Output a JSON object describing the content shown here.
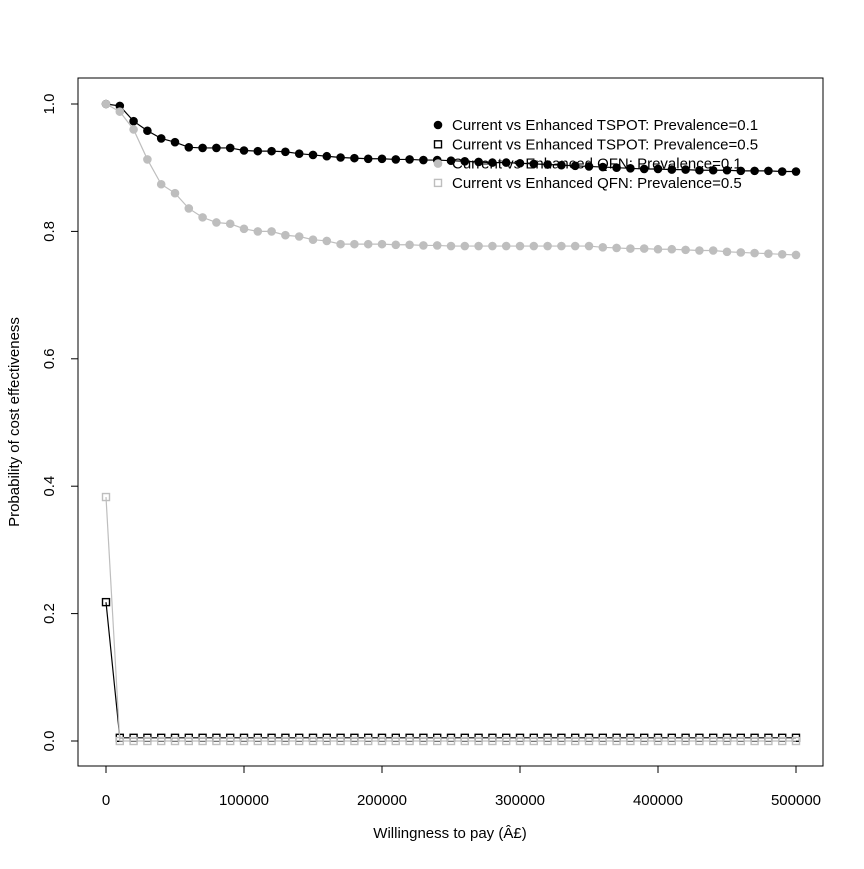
{
  "chart_data": {
    "type": "line",
    "xlabel": "Willingness to pay (Â£)",
    "ylabel": "Probability of cost effectiveness",
    "xlim": [
      0,
      500000
    ],
    "ylim": [
      0,
      1
    ],
    "x_ticks": [
      0,
      100000,
      200000,
      300000,
      400000,
      500000
    ],
    "x_tick_labels": [
      "0",
      "100000",
      "200000",
      "300000",
      "400000",
      "500000"
    ],
    "y_ticks": [
      0,
      0.2,
      0.4,
      0.6,
      0.8,
      1.0
    ],
    "y_tick_labels": [
      "0.0",
      "0.2",
      "0.4",
      "0.6",
      "0.8",
      "1.0"
    ],
    "grid": false,
    "legend_position": "top-right",
    "x": [
      0,
      10000,
      20000,
      30000,
      40000,
      50000,
      60000,
      70000,
      80000,
      90000,
      100000,
      110000,
      120000,
      130000,
      140000,
      150000,
      160000,
      170000,
      180000,
      190000,
      200000,
      210000,
      220000,
      230000,
      240000,
      250000,
      260000,
      270000,
      280000,
      290000,
      300000,
      310000,
      320000,
      330000,
      340000,
      350000,
      360000,
      370000,
      380000,
      390000,
      400000,
      410000,
      420000,
      430000,
      440000,
      450000,
      460000,
      470000,
      480000,
      490000,
      500000
    ],
    "series": [
      {
        "name": "Current vs Enhanced TSPOT: Prevalence=0.1",
        "color": "#000000",
        "marker": "filled-circle",
        "values": [
          1.0,
          0.997,
          0.973,
          0.958,
          0.946,
          0.94,
          0.932,
          0.931,
          0.931,
          0.931,
          0.927,
          0.926,
          0.926,
          0.925,
          0.922,
          0.92,
          0.918,
          0.916,
          0.915,
          0.914,
          0.914,
          0.913,
          0.913,
          0.912,
          0.912,
          0.911,
          0.91,
          0.909,
          0.908,
          0.908,
          0.907,
          0.906,
          0.905,
          0.904,
          0.903,
          0.902,
          0.901,
          0.9,
          0.899,
          0.898,
          0.898,
          0.897,
          0.897,
          0.896,
          0.896,
          0.896,
          0.895,
          0.895,
          0.895,
          0.894,
          0.894
        ]
      },
      {
        "name": "Current vs Enhanced TSPOT: Prevalence=0.5",
        "color": "#000000",
        "marker": "open-square",
        "values": [
          0.218,
          0.005,
          0.005,
          0.005,
          0.005,
          0.005,
          0.005,
          0.005,
          0.005,
          0.005,
          0.005,
          0.005,
          0.005,
          0.005,
          0.005,
          0.005,
          0.005,
          0.005,
          0.005,
          0.005,
          0.005,
          0.005,
          0.005,
          0.005,
          0.005,
          0.005,
          0.005,
          0.005,
          0.005,
          0.005,
          0.005,
          0.005,
          0.005,
          0.005,
          0.005,
          0.005,
          0.005,
          0.005,
          0.005,
          0.005,
          0.005,
          0.005,
          0.005,
          0.005,
          0.005,
          0.005,
          0.005,
          0.005,
          0.005,
          0.005,
          0.005
        ]
      },
      {
        "name": "Current vs Enhanced QFN: Prevalence=0.1",
        "color": "#bebebe",
        "marker": "filled-circle",
        "values": [
          1.0,
          0.988,
          0.96,
          0.913,
          0.874,
          0.86,
          0.836,
          0.822,
          0.814,
          0.812,
          0.804,
          0.8,
          0.8,
          0.794,
          0.792,
          0.787,
          0.785,
          0.78,
          0.78,
          0.78,
          0.78,
          0.779,
          0.779,
          0.778,
          0.778,
          0.777,
          0.777,
          0.777,
          0.777,
          0.777,
          0.777,
          0.777,
          0.777,
          0.777,
          0.777,
          0.777,
          0.775,
          0.774,
          0.773,
          0.773,
          0.772,
          0.772,
          0.771,
          0.77,
          0.77,
          0.768,
          0.767,
          0.766,
          0.765,
          0.764,
          0.763
        ]
      },
      {
        "name": "Current vs Enhanced QFN: Prevalence=0.5",
        "color": "#bebebe",
        "marker": "open-square",
        "values": [
          0.383,
          0.0,
          0.0,
          0.0,
          0.0,
          0.0,
          0.0,
          0.0,
          0.0,
          0.0,
          0.0,
          0.0,
          0.0,
          0.0,
          0.0,
          0.0,
          0.0,
          0.0,
          0.0,
          0.0,
          0.0,
          0.0,
          0.0,
          0.0,
          0.0,
          0.0,
          0.0,
          0.0,
          0.0,
          0.0,
          0.0,
          0.0,
          0.0,
          0.0,
          0.0,
          0.0,
          0.0,
          0.0,
          0.0,
          0.0,
          0.0,
          0.0,
          0.0,
          0.0,
          0.0,
          0.0,
          0.0,
          0.0,
          0.0,
          0.0,
          0.0
        ]
      }
    ]
  }
}
